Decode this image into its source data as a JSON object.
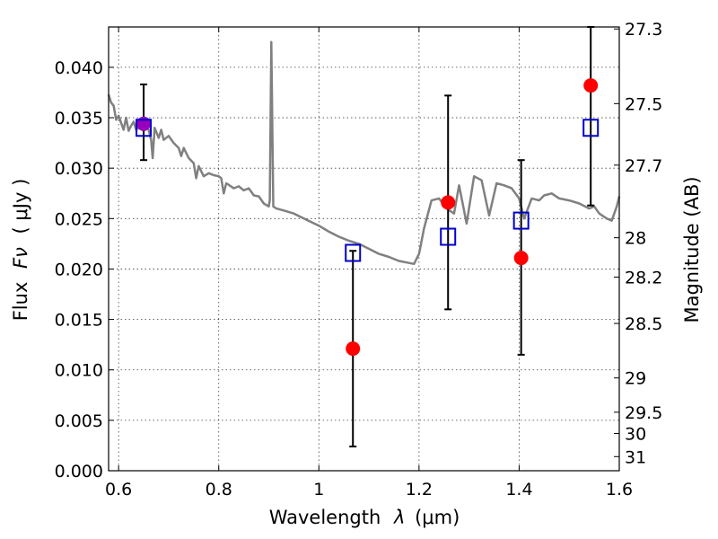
{
  "chart_data": {
    "type": "scatter",
    "xlabel": "Wavelength",
    "xlabel_symbol": "λ",
    "xlabel_unit": "(μm)",
    "ylabel": "Flux",
    "ylabel_symbol": "Fν",
    "ylabel_unit": "( μJy )",
    "ylabel_right": "Magnitude (AB)",
    "xlim": [
      0.58,
      1.6
    ],
    "ylim": [
      0.0,
      0.044
    ],
    "x_ticks": [
      {
        "value": 0.6,
        "label": "0.6"
      },
      {
        "value": 0.8,
        "label": "0.8"
      },
      {
        "value": 1.0,
        "label": "1"
      },
      {
        "value": 1.2,
        "label": "1.2"
      },
      {
        "value": 1.4,
        "label": "1.4"
      },
      {
        "value": 1.6,
        "label": "1.6"
      }
    ],
    "y_ticks": [
      {
        "value": 0.0,
        "label": "0.000"
      },
      {
        "value": 0.005,
        "label": "0.005"
      },
      {
        "value": 0.01,
        "label": "0.010"
      },
      {
        "value": 0.015,
        "label": "0.015"
      },
      {
        "value": 0.02,
        "label": "0.020"
      },
      {
        "value": 0.025,
        "label": "0.025"
      },
      {
        "value": 0.03,
        "label": "0.030"
      },
      {
        "value": 0.035,
        "label": "0.035"
      },
      {
        "value": 0.04,
        "label": "0.040"
      }
    ],
    "right_ticks": [
      {
        "flux": 0.0438,
        "label": "27.3"
      },
      {
        "flux": 0.0364,
        "label": "27.5"
      },
      {
        "flux": 0.0303,
        "label": "27.7"
      },
      {
        "flux": 0.0231,
        "label": "28"
      },
      {
        "flux": 0.0192,
        "label": "28.2"
      },
      {
        "flux": 0.0146,
        "label": "28.5"
      },
      {
        "flux": 0.0092,
        "label": "29"
      },
      {
        "flux": 0.0058,
        "label": "29.5"
      },
      {
        "flux": 0.0037,
        "label": "30"
      },
      {
        "flux": 0.0014,
        "label": "31"
      }
    ],
    "grid": true,
    "colors": {
      "model": "#808080",
      "observed": "#ff0000",
      "synthetic": "#0000cc",
      "first_point_fill": "#9900bb",
      "errorbar": "#000000"
    },
    "series": [
      {
        "kind": "line",
        "points": [
          [
            0.58,
            0.0373
          ],
          [
            0.585,
            0.0365
          ],
          [
            0.59,
            0.0362
          ],
          [
            0.595,
            0.0348
          ],
          [
            0.6,
            0.0352
          ],
          [
            0.605,
            0.0345
          ],
          [
            0.61,
            0.0338
          ],
          [
            0.615,
            0.035
          ],
          [
            0.62,
            0.0337
          ],
          [
            0.625,
            0.0342
          ],
          [
            0.63,
            0.0346
          ],
          [
            0.635,
            0.0338
          ],
          [
            0.64,
            0.034
          ],
          [
            0.645,
            0.0345
          ],
          [
            0.65,
            0.0343
          ],
          [
            0.655,
            0.0344
          ],
          [
            0.66,
            0.0338
          ],
          [
            0.665,
            0.0328
          ],
          [
            0.668,
            0.031
          ],
          [
            0.672,
            0.034
          ],
          [
            0.68,
            0.033
          ],
          [
            0.685,
            0.0338
          ],
          [
            0.69,
            0.0328
          ],
          [
            0.7,
            0.0332
          ],
          [
            0.71,
            0.0325
          ],
          [
            0.72,
            0.032
          ],
          [
            0.725,
            0.0312
          ],
          [
            0.73,
            0.032
          ],
          [
            0.74,
            0.031
          ],
          [
            0.75,
            0.0305
          ],
          [
            0.755,
            0.029
          ],
          [
            0.76,
            0.0302
          ],
          [
            0.77,
            0.0292
          ],
          [
            0.78,
            0.0295
          ],
          [
            0.79,
            0.0293
          ],
          [
            0.8,
            0.0292
          ],
          [
            0.805,
            0.029
          ],
          [
            0.81,
            0.0275
          ],
          [
            0.815,
            0.0285
          ],
          [
            0.83,
            0.028
          ],
          [
            0.84,
            0.0282
          ],
          [
            0.85,
            0.0278
          ],
          [
            0.86,
            0.028
          ],
          [
            0.87,
            0.0273
          ],
          [
            0.88,
            0.0272
          ],
          [
            0.89,
            0.0265
          ],
          [
            0.9,
            0.0262
          ],
          [
            0.902,
            0.0268
          ],
          [
            0.905,
            0.0425
          ],
          [
            0.909,
            0.0262
          ],
          [
            0.915,
            0.026
          ],
          [
            0.93,
            0.0258
          ],
          [
            0.95,
            0.0255
          ],
          [
            0.97,
            0.025
          ],
          [
            1.0,
            0.0243
          ],
          [
            1.02,
            0.0237
          ],
          [
            1.04,
            0.0232
          ],
          [
            1.06,
            0.0228
          ],
          [
            1.08,
            0.0225
          ],
          [
            1.1,
            0.022
          ],
          [
            1.12,
            0.0215
          ],
          [
            1.14,
            0.0212
          ],
          [
            1.16,
            0.0208
          ],
          [
            1.18,
            0.0206
          ],
          [
            1.19,
            0.0205
          ],
          [
            1.2,
            0.0215
          ],
          [
            1.21,
            0.024
          ],
          [
            1.225,
            0.0268
          ],
          [
            1.24,
            0.027
          ],
          [
            1.255,
            0.026
          ],
          [
            1.27,
            0.0255
          ],
          [
            1.28,
            0.0283
          ],
          [
            1.295,
            0.0245
          ],
          [
            1.31,
            0.0292
          ],
          [
            1.325,
            0.0288
          ],
          [
            1.34,
            0.0253
          ],
          [
            1.355,
            0.0285
          ],
          [
            1.37,
            0.0283
          ],
          [
            1.385,
            0.028
          ],
          [
            1.4,
            0.027
          ],
          [
            1.41,
            0.025
          ],
          [
            1.425,
            0.027
          ],
          [
            1.44,
            0.0268
          ],
          [
            1.45,
            0.0273
          ],
          [
            1.465,
            0.0275
          ],
          [
            1.48,
            0.027
          ],
          [
            1.5,
            0.0268
          ],
          [
            1.52,
            0.0265
          ],
          [
            1.54,
            0.026
          ],
          [
            1.55,
            0.0262
          ],
          [
            1.56,
            0.0255
          ],
          [
            1.575,
            0.025
          ],
          [
            1.585,
            0.0248
          ],
          [
            1.595,
            0.0262
          ],
          [
            1.6,
            0.0272
          ]
        ]
      },
      {
        "kind": "points-circle",
        "points": [
          {
            "x": 0.65,
            "y": 0.0344,
            "yerr_low": 0.0308,
            "yerr_high": 0.0383
          },
          {
            "x": 1.068,
            "y": 0.0121,
            "yerr_low": 0.0024,
            "yerr_high": 0.0218
          },
          {
            "x": 1.258,
            "y": 0.0266,
            "yerr_low": 0.016,
            "yerr_high": 0.0372
          },
          {
            "x": 1.404,
            "y": 0.0211,
            "yerr_low": 0.0115,
            "yerr_high": 0.0308
          },
          {
            "x": 1.543,
            "y": 0.0382,
            "yerr_low": 0.0263,
            "yerr_high": 0.044
          }
        ]
      },
      {
        "kind": "points-square",
        "points": [
          {
            "x": 0.65,
            "y": 0.034
          },
          {
            "x": 1.068,
            "y": 0.0216
          },
          {
            "x": 1.258,
            "y": 0.0232
          },
          {
            "x": 1.404,
            "y": 0.0248
          },
          {
            "x": 1.543,
            "y": 0.034
          }
        ]
      }
    ]
  }
}
